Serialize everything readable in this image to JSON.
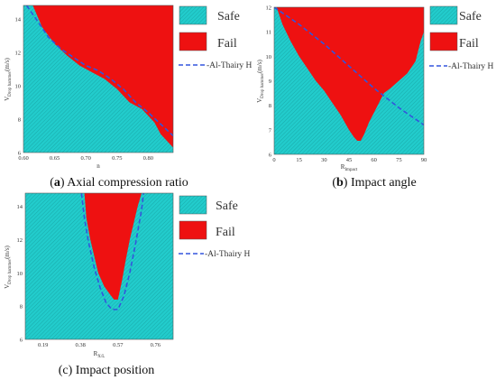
{
  "chart_data": [
    {
      "type": "area",
      "caption_letter": "a",
      "caption_text": "Axial compression ratio",
      "xlabel": "n",
      "ylabel": "V_Drop hammer (m/s)",
      "xlim": [
        0.6,
        0.84
      ],
      "ylim": [
        6,
        14.8
      ],
      "xticks": [
        "0.60",
        "0.65",
        "0.70",
        "0.75",
        "0.80"
      ],
      "xtick_values": [
        0.6,
        0.65,
        0.7,
        0.75,
        0.8
      ],
      "yticks": [
        "6",
        "8",
        "10",
        "12",
        "14"
      ],
      "ytick_values": [
        6,
        8,
        10,
        12,
        14
      ],
      "fail_boundary": {
        "x": [
          0.615,
          0.63,
          0.65,
          0.67,
          0.69,
          0.71,
          0.73,
          0.75,
          0.77,
          0.79,
          0.8,
          0.81,
          0.82,
          0.84
        ],
        "y": [
          14.8,
          13.5,
          12.5,
          11.8,
          11.2,
          10.8,
          10.4,
          9.8,
          9.0,
          8.6,
          8.2,
          7.8,
          7.1,
          6.3
        ]
      },
      "series": [
        {
          "name": "Safe",
          "color": "#22cccc"
        },
        {
          "name": "Fail",
          "color": "#ee1111"
        },
        {
          "name": "Al-Thairy H",
          "color": "#3355dd",
          "x": [
            0.605,
            0.62,
            0.64,
            0.66,
            0.68,
            0.7,
            0.72,
            0.74,
            0.76,
            0.78,
            0.8,
            0.82,
            0.84
          ],
          "y": [
            14.8,
            14.0,
            12.9,
            12.2,
            11.7,
            11.2,
            10.9,
            10.4,
            9.8,
            9.0,
            8.4,
            7.7,
            7.0
          ]
        }
      ]
    },
    {
      "type": "area",
      "caption_letter": "b",
      "caption_text": "Impact angle",
      "xlabel": "R_Impact",
      "ylabel": "V_Drop hammer (m/s)",
      "xlim": [
        0,
        90
      ],
      "ylim": [
        6,
        12
      ],
      "xticks": [
        "0",
        "15",
        "30",
        "45",
        "60",
        "75",
        "90"
      ],
      "xtick_values": [
        0,
        15,
        30,
        45,
        60,
        75,
        90
      ],
      "yticks": [
        "6",
        "7",
        "8",
        "9",
        "10",
        "11",
        "12"
      ],
      "ytick_values": [
        6,
        7,
        8,
        9,
        10,
        11,
        12
      ],
      "fail_boundary": {
        "x": [
          1.5,
          5,
          10,
          15,
          20,
          25,
          30,
          35,
          40,
          45,
          48,
          50,
          52,
          54,
          57,
          60,
          63,
          66,
          70,
          75,
          80,
          85,
          88,
          90
        ],
        "y": [
          12,
          11.3,
          10.6,
          10.0,
          9.5,
          9.0,
          8.6,
          8.1,
          7.6,
          7.0,
          6.7,
          6.55,
          6.55,
          6.8,
          7.3,
          7.7,
          8.1,
          8.5,
          8.7,
          9.0,
          9.3,
          9.8,
          10.6,
          11.0
        ]
      },
      "series": [
        {
          "name": "Safe",
          "color": "#22cccc"
        },
        {
          "name": "Fail",
          "color": "#ee1111"
        },
        {
          "name": "Al-Thairy H",
          "color": "#3355dd",
          "x": [
            0,
            15,
            30,
            45,
            60,
            75,
            90
          ],
          "y": [
            12.0,
            11.3,
            10.5,
            9.6,
            8.7,
            7.9,
            7.2
          ]
        }
      ]
    },
    {
      "type": "area",
      "caption_letter": "c",
      "caption_text": "Impact position",
      "xlabel": "R_X/L",
      "ylabel": "V_Drop hammer (m/s)",
      "xlim": [
        0.1,
        0.85
      ],
      "ylim": [
        6,
        14.8
      ],
      "xticks": [
        "0.19",
        "0.38",
        "0.57",
        "0.76"
      ],
      "xtick_values": [
        0.19,
        0.38,
        0.57,
        0.76
      ],
      "yticks": [
        "6",
        "8",
        "10",
        "12",
        "14"
      ],
      "ytick_values": [
        6,
        8,
        10,
        12,
        14
      ],
      "fail_boundary": {
        "x": [
          0.4,
          0.41,
          0.43,
          0.45,
          0.47,
          0.5,
          0.53,
          0.55,
          0.57,
          0.59,
          0.61,
          0.63,
          0.65,
          0.67,
          0.69
        ],
        "y": [
          14.8,
          13.3,
          12.0,
          11.0,
          10.0,
          9.2,
          8.7,
          8.4,
          8.4,
          9.5,
          10.8,
          12.0,
          13.0,
          14.0,
          14.8
        ]
      },
      "series": [
        {
          "name": "Safe",
          "color": "#22cccc"
        },
        {
          "name": "Fail",
          "color": "#ee1111"
        },
        {
          "name": "Al-Thairy H",
          "color": "#3355dd",
          "x": [
            0.385,
            0.4,
            0.42,
            0.45,
            0.48,
            0.51,
            0.54,
            0.57,
            0.6,
            0.63,
            0.66,
            0.69,
            0.7
          ],
          "y": [
            14.8,
            13.3,
            11.9,
            10.3,
            9.1,
            8.2,
            7.8,
            7.8,
            8.6,
            10.0,
            11.8,
            13.8,
            14.8
          ]
        }
      ]
    }
  ]
}
